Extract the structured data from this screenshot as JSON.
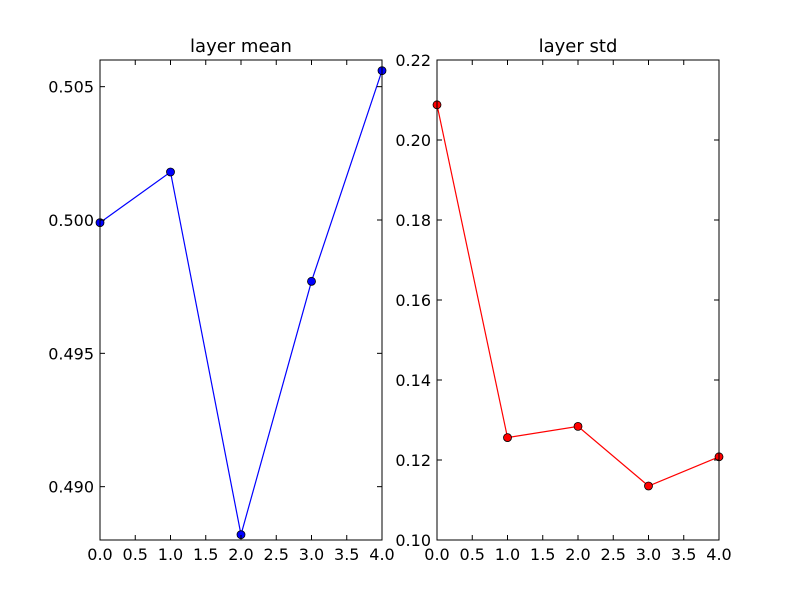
{
  "chart_data": [
    {
      "type": "line",
      "title": "layer mean",
      "xlabel": "",
      "ylabel": "",
      "xlim": [
        0.0,
        4.0
      ],
      "ylim": [
        0.488,
        0.506
      ],
      "x_ticks": [
        "0.0",
        "0.5",
        "1.0",
        "1.5",
        "2.0",
        "2.5",
        "3.0",
        "3.5",
        "4.0"
      ],
      "y_ticks": [
        "0.490",
        "0.495",
        "0.500",
        "0.505"
      ],
      "grid": false,
      "series": [
        {
          "color": "#0000ff",
          "marker": "circle",
          "x": [
            0,
            1,
            2,
            3,
            4
          ],
          "y": [
            0.4999,
            0.5018,
            0.4882,
            0.4977,
            0.5056
          ]
        }
      ]
    },
    {
      "type": "line",
      "title": "layer std",
      "xlabel": "",
      "ylabel": "",
      "xlim": [
        0.0,
        4.0
      ],
      "ylim": [
        0.1,
        0.22
      ],
      "x_ticks": [
        "0.0",
        "0.5",
        "1.0",
        "1.5",
        "2.0",
        "2.5",
        "3.0",
        "3.5",
        "4.0"
      ],
      "y_ticks": [
        "0.10",
        "0.12",
        "0.14",
        "0.16",
        "0.18",
        "0.20",
        "0.22"
      ],
      "grid": false,
      "series": [
        {
          "color": "#ff0000",
          "marker": "circle",
          "x": [
            0,
            1,
            2,
            3,
            4
          ],
          "y": [
            0.2088,
            0.1256,
            0.1284,
            0.1135,
            0.1208
          ]
        }
      ]
    }
  ]
}
